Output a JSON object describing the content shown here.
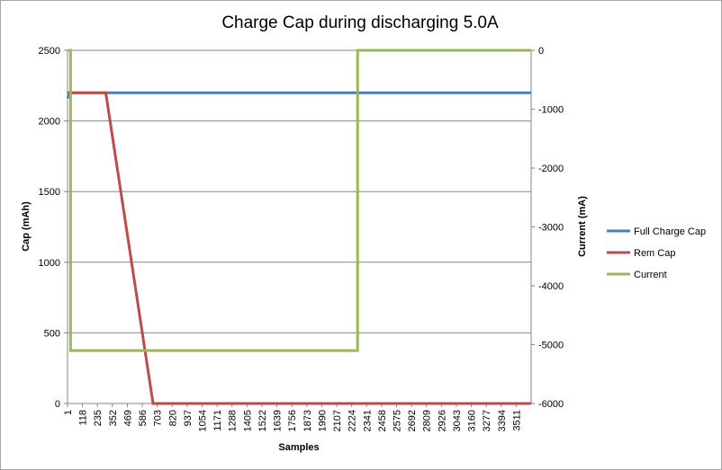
{
  "chart_data": {
    "type": "line",
    "title": "Charge Cap during discharging 5.0A",
    "xlabel": "Samples",
    "ylabel": "Cap (mAh)",
    "y2label": "Current (mA)",
    "ylim": [
      0,
      2500
    ],
    "y2lim": [
      -6000,
      0
    ],
    "yticks": [
      "0",
      "500",
      "1000",
      "1500",
      "2000",
      "2500"
    ],
    "y2ticks": [
      "-6000",
      "-5000",
      "-4000",
      "-3000",
      "-2000",
      "-1000",
      "0"
    ],
    "xlim": [
      1,
      3628
    ],
    "xticks": [
      "1",
      "118",
      "235",
      "352",
      "469",
      "586",
      "703",
      "820",
      "937",
      "1054",
      "1171",
      "1288",
      "1405",
      "1522",
      "1639",
      "1756",
      "1873",
      "1990",
      "2107",
      "2224",
      "2341",
      "2458",
      "2575",
      "2692",
      "2809",
      "2926",
      "3043",
      "3160",
      "3277",
      "3394",
      "3511"
    ],
    "grid": true,
    "legend_position": "right",
    "series": [
      {
        "name": "Full Charge Cap",
        "axis": "left",
        "color": "#4a7ebb",
        "x": [
          1,
          20,
          3628
        ],
        "y": [
          2160,
          2200,
          2200
        ]
      },
      {
        "name": "Rem Cap",
        "axis": "left",
        "color": "#be4b48",
        "x": [
          1,
          300,
          670,
          3628
        ],
        "y": [
          2200,
          2200,
          0,
          0
        ]
      },
      {
        "name": "Current",
        "axis": "right",
        "color": "#98b954",
        "x": [
          1,
          25,
          25,
          2270,
          2270,
          3628
        ],
        "y": [
          0,
          0,
          -5100,
          -5100,
          0,
          0
        ]
      }
    ]
  }
}
